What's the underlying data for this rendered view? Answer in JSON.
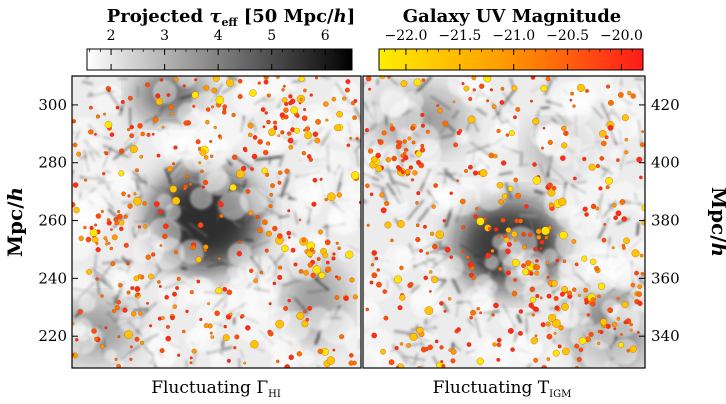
{
  "colorbars": [
    {
      "title_pre": "Projected ",
      "title_sym": "τ",
      "title_sub": "eff",
      "title_post": " [50 Mpc/",
      "title_h": "h",
      "title_end": "]",
      "ticks": [
        "2",
        "3",
        "4",
        "5",
        "6"
      ],
      "tick_values": [
        2,
        3,
        4,
        5,
        6
      ],
      "range": [
        1.55,
        6.5
      ],
      "colors": [
        "#ffffff",
        "#000000"
      ]
    },
    {
      "title": "Galaxy UV Magnitude",
      "ticks": [
        "−22.0",
        "−21.5",
        "−21.0",
        "−20.5",
        "−20.0"
      ],
      "tick_values": [
        -22.0,
        -21.5,
        -21.0,
        -20.5,
        -20.0
      ],
      "range": [
        -22.25,
        -19.8
      ],
      "colors": [
        "#ffee00",
        "#ff9a00",
        "#ff1a1a"
      ]
    }
  ],
  "panels": [
    {
      "label_main": "Fluctuating Γ",
      "label_sub": "HI",
      "y_axis_label_main": "Mpc/",
      "y_axis_label_h": "h",
      "y_axis_side": "left",
      "y_ticks": [
        "220",
        "240",
        "260",
        "280",
        "300"
      ],
      "y_tick_values": [
        220,
        240,
        260,
        280,
        300
      ],
      "y_range": [
        209,
        310
      ],
      "void": "center-left dark region"
    },
    {
      "label_main": "Fluctuating T",
      "label_sub": "IGM",
      "y_axis_label_main": "Mpc/",
      "y_axis_label_h": "h",
      "y_axis_side": "right",
      "y_ticks": [
        "340",
        "360",
        "380",
        "400",
        "420"
      ],
      "y_tick_values": [
        340,
        360,
        380,
        400,
        420
      ],
      "y_range": [
        329,
        430
      ],
      "void": "central dark region with clustered galaxies"
    }
  ]
}
